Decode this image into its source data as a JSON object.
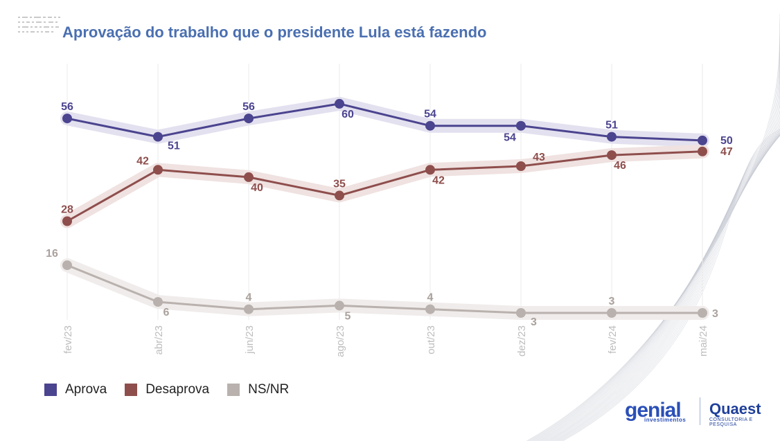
{
  "header": {
    "title": "Aprovação do trabalho que o presidente Lula está fazendo"
  },
  "legend": {
    "items": [
      {
        "label": "Aprova",
        "color": "#4b448f"
      },
      {
        "label": "Desaprova",
        "color": "#8e4e4c"
      },
      {
        "label": "NS/NR",
        "color": "#b9b1ad"
      }
    ]
  },
  "brands": {
    "genial": "genial",
    "genial_sub": "investimentos",
    "quaest": "Quaest",
    "quaest_sub": "CONSULTORIA E PESQUISA"
  },
  "chart_data": {
    "type": "line",
    "title": "Aprovação do trabalho que o presidente Lula está fazendo",
    "categories": [
      "fev/23",
      "abr/23",
      "jun/23",
      "ago/23",
      "out/23",
      "dez/23",
      "fev/24",
      "mai/24"
    ],
    "series": [
      {
        "name": "Aprova",
        "color": "#4b448f",
        "band": "#e3e1ef",
        "values": [
          56,
          51,
          56,
          60,
          54,
          54,
          51,
          50
        ]
      },
      {
        "name": "Desaprova",
        "color": "#8e4e4c",
        "band": "#efe2e1",
        "values": [
          28,
          42,
          40,
          35,
          42,
          43,
          46,
          47
        ]
      },
      {
        "name": "NS/NR",
        "color": "#b9b1ad",
        "band": "#f0eceb",
        "values": [
          16,
          6,
          4,
          5,
          4,
          3,
          3,
          3
        ]
      }
    ],
    "xlabel": "",
    "ylabel": "",
    "grid": "vertical",
    "legend_position": "bottom-left"
  }
}
